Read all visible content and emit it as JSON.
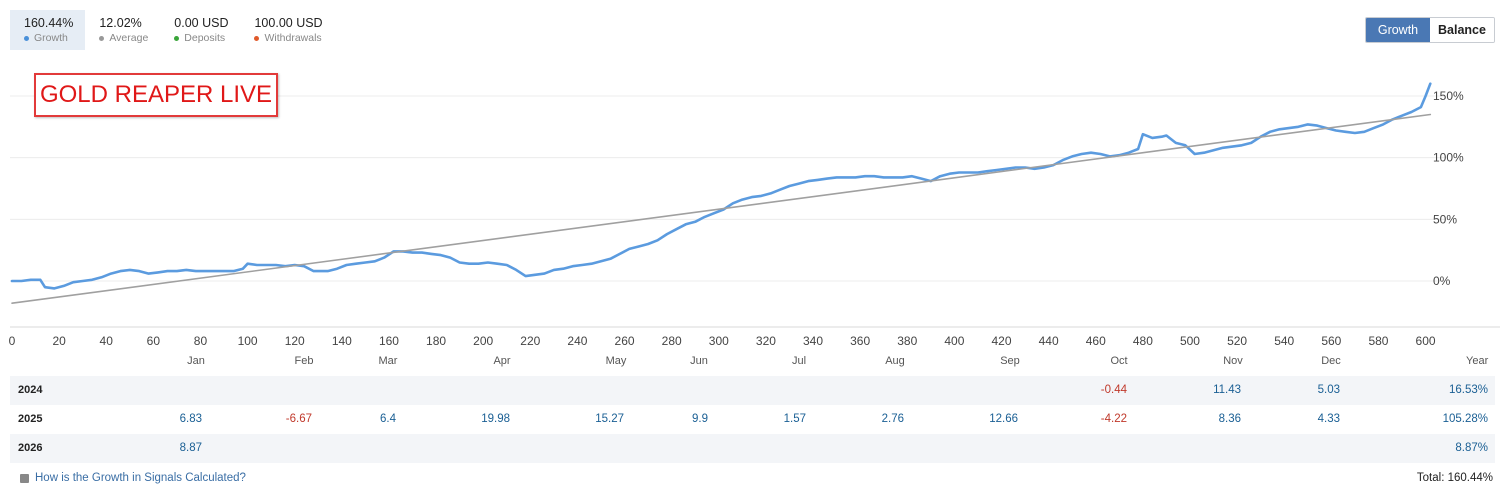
{
  "stats": [
    {
      "value": "160.44%",
      "label": "Growth",
      "dot_color": "#4a90d9",
      "active": true
    },
    {
      "value": "12.02%",
      "label": "Average",
      "dot_color": "#999999",
      "active": false
    },
    {
      "value": "0.00 USD",
      "label": "Deposits",
      "dot_color": "#3aa53a",
      "active": false
    },
    {
      "value": "100.00 USD",
      "label": "Withdrawals",
      "dot_color": "#e05a2b",
      "active": false
    }
  ],
  "toggle": {
    "growth_label": "Growth",
    "balance_label": "Balance"
  },
  "overlay_title": "GOLD REAPER LIVE",
  "chart_data": {
    "type": "line",
    "x_ticks": [
      0,
      20,
      40,
      60,
      80,
      100,
      120,
      140,
      160,
      180,
      200,
      220,
      240,
      260,
      280,
      300,
      320,
      340,
      360,
      380,
      400,
      420,
      440,
      460,
      480,
      500,
      520,
      540,
      560,
      580,
      600
    ],
    "y_ticks": [
      "0%",
      "50%",
      "100%",
      "150%"
    ],
    "y_tick_values": [
      0,
      50,
      100,
      150
    ],
    "xlim": [
      0,
      604
    ],
    "ylim": [
      -37,
      180
    ],
    "series": [
      {
        "color": "#5b9bdf",
        "points": [
          [
            0,
            0
          ],
          [
            4,
            0
          ],
          [
            8,
            1
          ],
          [
            12,
            1
          ],
          [
            14,
            -5
          ],
          [
            18,
            -6
          ],
          [
            22,
            -4
          ],
          [
            26,
            -1
          ],
          [
            30,
            0
          ],
          [
            34,
            1
          ],
          [
            38,
            3
          ],
          [
            42,
            6
          ],
          [
            46,
            8
          ],
          [
            50,
            9
          ],
          [
            54,
            8
          ],
          [
            58,
            6
          ],
          [
            62,
            7
          ],
          [
            66,
            8
          ],
          [
            70,
            8
          ],
          [
            74,
            9
          ],
          [
            78,
            8
          ],
          [
            82,
            8
          ],
          [
            86,
            8
          ],
          [
            90,
            8
          ],
          [
            94,
            8
          ],
          [
            98,
            10
          ],
          [
            100,
            14
          ],
          [
            104,
            13
          ],
          [
            108,
            13
          ],
          [
            112,
            13
          ],
          [
            116,
            12
          ],
          [
            120,
            13
          ],
          [
            124,
            12
          ],
          [
            128,
            8
          ],
          [
            134,
            8
          ],
          [
            138,
            10
          ],
          [
            142,
            13
          ],
          [
            146,
            14
          ],
          [
            150,
            15
          ],
          [
            154,
            16
          ],
          [
            158,
            19
          ],
          [
            162,
            24
          ],
          [
            166,
            24
          ],
          [
            170,
            23
          ],
          [
            174,
            23
          ],
          [
            178,
            22
          ],
          [
            182,
            21
          ],
          [
            186,
            19
          ],
          [
            190,
            15
          ],
          [
            194,
            14
          ],
          [
            198,
            14
          ],
          [
            202,
            15
          ],
          [
            206,
            14
          ],
          [
            210,
            13
          ],
          [
            214,
            9
          ],
          [
            218,
            4
          ],
          [
            222,
            5
          ],
          [
            226,
            6
          ],
          [
            230,
            9
          ],
          [
            234,
            10
          ],
          [
            238,
            12
          ],
          [
            242,
            13
          ],
          [
            246,
            14
          ],
          [
            250,
            16
          ],
          [
            254,
            18
          ],
          [
            258,
            22
          ],
          [
            262,
            26
          ],
          [
            266,
            28
          ],
          [
            270,
            30
          ],
          [
            274,
            33
          ],
          [
            278,
            38
          ],
          [
            282,
            42
          ],
          [
            286,
            46
          ],
          [
            290,
            48
          ],
          [
            294,
            52
          ],
          [
            298,
            55
          ],
          [
            302,
            58
          ],
          [
            306,
            63
          ],
          [
            310,
            66
          ],
          [
            314,
            68
          ],
          [
            318,
            69
          ],
          [
            322,
            71
          ],
          [
            326,
            74
          ],
          [
            330,
            77
          ],
          [
            334,
            79
          ],
          [
            338,
            81
          ],
          [
            342,
            82
          ],
          [
            346,
            83
          ],
          [
            350,
            84
          ],
          [
            354,
            84
          ],
          [
            358,
            84
          ],
          [
            362,
            85
          ],
          [
            366,
            85
          ],
          [
            370,
            84
          ],
          [
            374,
            84
          ],
          [
            378,
            84
          ],
          [
            382,
            85
          ],
          [
            386,
            83
          ],
          [
            390,
            81
          ],
          [
            394,
            85
          ],
          [
            398,
            87
          ],
          [
            402,
            88
          ],
          [
            406,
            88
          ],
          [
            410,
            88
          ],
          [
            414,
            89
          ],
          [
            418,
            90
          ],
          [
            422,
            91
          ],
          [
            426,
            92
          ],
          [
            430,
            92
          ],
          [
            434,
            91
          ],
          [
            438,
            92
          ],
          [
            442,
            94
          ],
          [
            446,
            98
          ],
          [
            450,
            101
          ],
          [
            454,
            103
          ],
          [
            458,
            104
          ],
          [
            462,
            103
          ],
          [
            466,
            101
          ],
          [
            470,
            102
          ],
          [
            474,
            104
          ],
          [
            478,
            107
          ],
          [
            480,
            119
          ],
          [
            484,
            116
          ],
          [
            488,
            117
          ],
          [
            490,
            118
          ],
          [
            494,
            112
          ],
          [
            498,
            110
          ],
          [
            502,
            103
          ],
          [
            506,
            104
          ],
          [
            510,
            106
          ],
          [
            514,
            108
          ],
          [
            518,
            109
          ],
          [
            522,
            110
          ],
          [
            526,
            112
          ],
          [
            530,
            117
          ],
          [
            534,
            121
          ],
          [
            538,
            123
          ],
          [
            542,
            124
          ],
          [
            546,
            125
          ],
          [
            550,
            127
          ],
          [
            554,
            126
          ],
          [
            558,
            124
          ],
          [
            562,
            122
          ],
          [
            566,
            121
          ],
          [
            570,
            120
          ],
          [
            574,
            121
          ],
          [
            578,
            124
          ],
          [
            582,
            127
          ],
          [
            586,
            131
          ],
          [
            590,
            134
          ],
          [
            594,
            137
          ],
          [
            598,
            141
          ],
          [
            600,
            150
          ],
          [
            602,
            160
          ]
        ]
      },
      {
        "color": "#a0a0a0",
        "points": [
          [
            0,
            -18
          ],
          [
            602,
            135
          ]
        ]
      }
    ]
  },
  "months": [
    "Jan",
    "Feb",
    "Mar",
    "Apr",
    "May",
    "Jun",
    "Jul",
    "Aug",
    "Sep",
    "Oct",
    "Nov",
    "Dec",
    "Year"
  ],
  "table": [
    {
      "year": "2024",
      "cells": [
        null,
        null,
        null,
        null,
        null,
        null,
        null,
        null,
        null,
        "-0.44",
        "11.43",
        "5.03",
        "16.53%"
      ]
    },
    {
      "year": "2025",
      "cells": [
        "6.83",
        "-6.67",
        "6.4",
        "19.98",
        "15.27",
        "9.9",
        "1.57",
        "2.76",
        "12.66",
        "-4.22",
        "8.36",
        "4.33",
        "105.28%"
      ]
    },
    {
      "year": "2026",
      "cells": [
        "8.87",
        null,
        null,
        null,
        null,
        null,
        null,
        null,
        null,
        null,
        null,
        null,
        "8.87%"
      ]
    }
  ],
  "footer": {
    "help_link": "How is the Growth in Signals Calculated?",
    "total": "Total: 160.44%"
  }
}
